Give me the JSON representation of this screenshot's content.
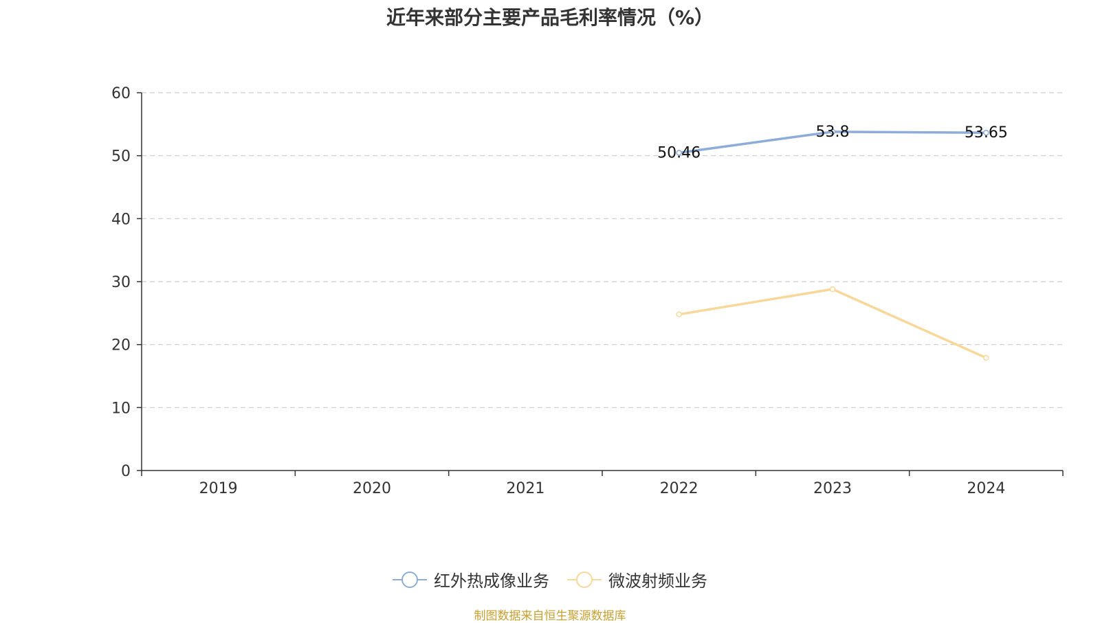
{
  "chart_data": {
    "type": "line",
    "title": "近年来部分主要产品毛利率情况（%）",
    "categories": [
      "2019",
      "2020",
      "2021",
      "2022",
      "2023",
      "2024"
    ],
    "ylim": [
      0,
      60
    ],
    "yticks": [
      "0",
      "10",
      "20",
      "30",
      "40",
      "50",
      "60"
    ],
    "grid": true,
    "legend_position": "bottom",
    "series": [
      {
        "name": "红外热成像业务",
        "color": "#8eacd9",
        "values": [
          null,
          null,
          null,
          50.46,
          53.8,
          53.65
        ],
        "labels": [
          "",
          "",
          "",
          "50.46",
          "53.8",
          "53.65"
        ]
      },
      {
        "name": "微波射频业务",
        "color": "#f8d89a",
        "values": [
          null,
          null,
          null,
          24.8,
          28.8,
          17.9
        ],
        "labels": [
          "",
          "",
          "",
          "",
          "",
          ""
        ]
      }
    ]
  },
  "source": {
    "text": "制图数据来自恒生聚源数据库",
    "color": "#c8a032"
  }
}
